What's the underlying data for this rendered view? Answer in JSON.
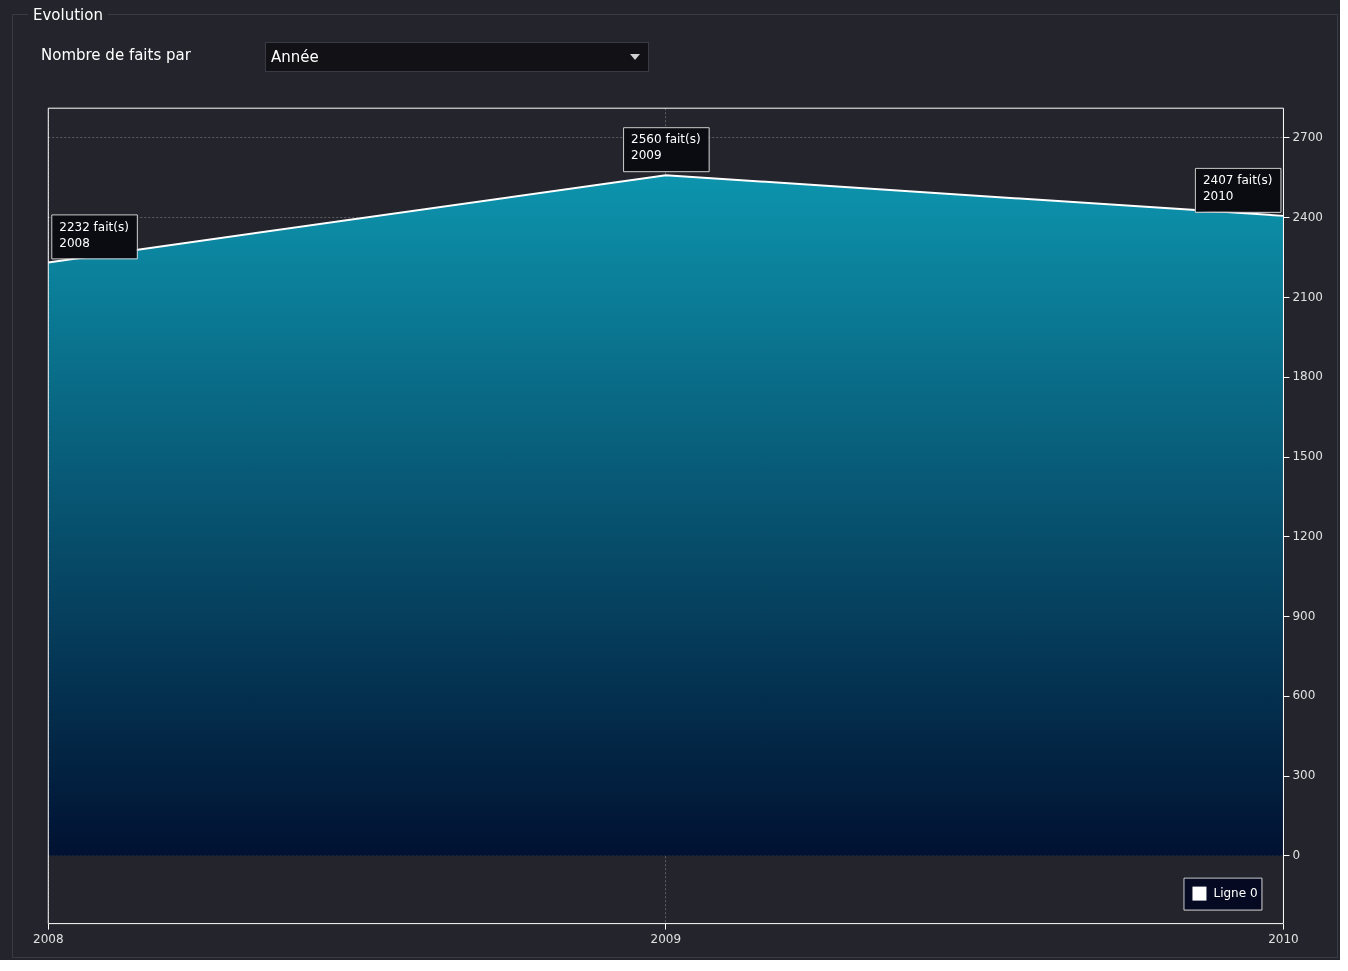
{
  "chart_data": {
    "type": "area",
    "title": "Evolution",
    "subtitle": "Nombre de faits par",
    "annotations": [
      "Année",
      {
        "text": "2232 fait(s)\n2008",
        "x": 2008,
        "y": 2232
      },
      {
        "text": "2560 fait(s)\n2009",
        "x": 2009,
        "y": 2560
      },
      {
        "text": "2407 fait(s)\n2010",
        "x": 2010,
        "y": 2407
      }
    ],
    "x": [
      2008,
      2009,
      2010
    ],
    "series": [
      {
        "name": "Ligne 0",
        "type": "area",
        "color": "#0e9db6",
        "values": [
          2232,
          2560,
          2407
        ]
      }
    ],
    "xlim": [
      2008,
      2010
    ],
    "xticks": [
      2008,
      2009,
      2010
    ],
    "ylim": [
      -255,
      2812
    ],
    "yticks": [
      0,
      300,
      600,
      900,
      1200,
      1500,
      1800,
      2100,
      2400,
      2700
    ],
    "grid": true,
    "legend": "bottom right",
    "marker": "none"
  }
}
